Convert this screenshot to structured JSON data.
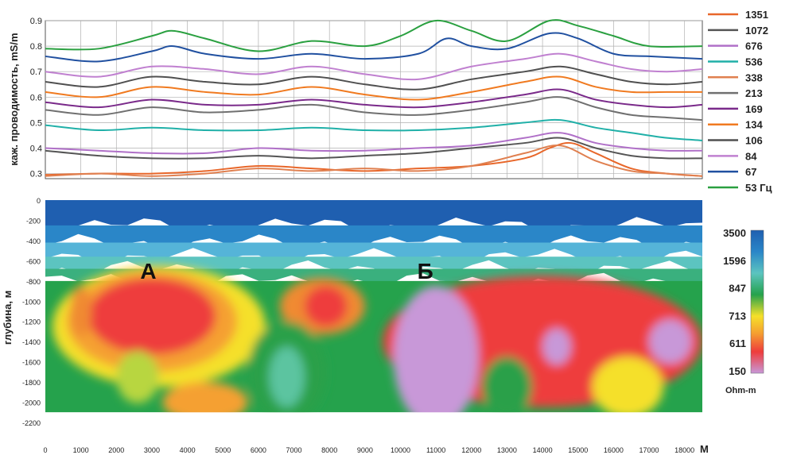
{
  "chart_data": [
    {
      "type": "line",
      "ylabel": "каж. проводимость, mS/m",
      "ylim": [
        0.28,
        0.9
      ],
      "yticks": [
        "0.9",
        "0.8",
        "0.7",
        "0.6",
        "0.5",
        "0.4",
        "0.3"
      ],
      "xlim": [
        0,
        18500
      ],
      "grid": true,
      "legend_position": "right",
      "frequency_unit": "Гц",
      "series": [
        {
          "name": "1351",
          "color": "#e8672a",
          "x": [
            0,
            1500,
            3000,
            4500,
            6000,
            7500,
            9000,
            10500,
            12000,
            13500,
            14200,
            14800,
            15500,
            16500,
            17500,
            18500
          ],
          "y": [
            0.295,
            0.3,
            0.3,
            0.31,
            0.33,
            0.32,
            0.31,
            0.32,
            0.33,
            0.36,
            0.4,
            0.42,
            0.38,
            0.32,
            0.3,
            0.29
          ]
        },
        {
          "name": "1072",
          "color": "#555555",
          "x": [
            0,
            1500,
            3000,
            4500,
            6000,
            7500,
            9000,
            10500,
            12000,
            13500,
            14500,
            15500,
            16500,
            17500,
            18500
          ],
          "y": [
            0.39,
            0.37,
            0.36,
            0.36,
            0.37,
            0.36,
            0.37,
            0.38,
            0.4,
            0.42,
            0.44,
            0.4,
            0.37,
            0.36,
            0.36
          ]
        },
        {
          "name": "676",
          "color": "#b070c8",
          "x": [
            0,
            1500,
            3000,
            4500,
            6000,
            7500,
            9000,
            10500,
            12000,
            13500,
            14500,
            15500,
            16500,
            17500,
            18500
          ],
          "y": [
            0.4,
            0.39,
            0.38,
            0.38,
            0.4,
            0.39,
            0.39,
            0.4,
            0.41,
            0.44,
            0.46,
            0.42,
            0.4,
            0.39,
            0.39
          ]
        },
        {
          "name": "536",
          "color": "#20b0a8",
          "x": [
            0,
            1500,
            3000,
            4500,
            6000,
            7500,
            9000,
            10500,
            12000,
            13500,
            14500,
            15500,
            16500,
            17500,
            18500
          ],
          "y": [
            0.49,
            0.47,
            0.48,
            0.47,
            0.47,
            0.48,
            0.47,
            0.47,
            0.48,
            0.5,
            0.51,
            0.48,
            0.46,
            0.44,
            0.43
          ]
        },
        {
          "name": "338",
          "color": "#e08050",
          "x": [
            0,
            1500,
            3000,
            4500,
            6000,
            7500,
            9000,
            10500,
            12000,
            13500,
            14500,
            15500,
            16500,
            17500,
            18500
          ],
          "y": [
            0.29,
            0.3,
            0.29,
            0.3,
            0.32,
            0.31,
            0.32,
            0.31,
            0.33,
            0.38,
            0.41,
            0.35,
            0.31,
            0.3,
            0.29
          ]
        },
        {
          "name": "213",
          "color": "#707070",
          "x": [
            0,
            1500,
            3000,
            4500,
            6000,
            7500,
            9000,
            10500,
            12000,
            13500,
            14500,
            15500,
            16500,
            17500,
            18500
          ],
          "y": [
            0.55,
            0.53,
            0.56,
            0.54,
            0.55,
            0.57,
            0.54,
            0.53,
            0.55,
            0.58,
            0.6,
            0.56,
            0.53,
            0.52,
            0.51
          ]
        },
        {
          "name": "169",
          "color": "#7a2a8a",
          "x": [
            0,
            1500,
            3000,
            4500,
            6000,
            7500,
            9000,
            10500,
            12000,
            13500,
            14500,
            15500,
            16500,
            17500,
            18500
          ],
          "y": [
            0.58,
            0.56,
            0.59,
            0.57,
            0.57,
            0.59,
            0.57,
            0.56,
            0.58,
            0.61,
            0.63,
            0.59,
            0.57,
            0.56,
            0.57
          ]
        },
        {
          "name": "134",
          "color": "#f07a20",
          "x": [
            0,
            1500,
            3000,
            4500,
            6000,
            7500,
            9000,
            10500,
            12000,
            13500,
            14500,
            15500,
            16500,
            17500,
            18500
          ],
          "y": [
            0.62,
            0.6,
            0.64,
            0.62,
            0.61,
            0.64,
            0.61,
            0.59,
            0.62,
            0.66,
            0.68,
            0.64,
            0.62,
            0.62,
            0.62
          ]
        },
        {
          "name": "106",
          "color": "#505050",
          "x": [
            0,
            1500,
            3000,
            4500,
            6000,
            7500,
            9000,
            10500,
            12000,
            13500,
            14500,
            15500,
            16500,
            17500,
            18500
          ],
          "y": [
            0.66,
            0.64,
            0.68,
            0.66,
            0.65,
            0.68,
            0.65,
            0.63,
            0.67,
            0.7,
            0.72,
            0.69,
            0.66,
            0.65,
            0.66
          ]
        },
        {
          "name": "84",
          "color": "#c080d0",
          "x": [
            0,
            1500,
            3000,
            4500,
            6000,
            7500,
            9000,
            10500,
            12000,
            13500,
            14500,
            15500,
            16500,
            17500,
            18500
          ],
          "y": [
            0.7,
            0.68,
            0.72,
            0.71,
            0.69,
            0.72,
            0.69,
            0.67,
            0.72,
            0.75,
            0.77,
            0.74,
            0.71,
            0.7,
            0.71
          ]
        },
        {
          "name": "67",
          "color": "#2050a0",
          "x": [
            0,
            1500,
            3000,
            3600,
            4500,
            6000,
            7500,
            9000,
            10500,
            11300,
            12000,
            13000,
            14200,
            15000,
            16000,
            17000,
            18500
          ],
          "y": [
            0.76,
            0.74,
            0.78,
            0.8,
            0.77,
            0.75,
            0.77,
            0.75,
            0.77,
            0.83,
            0.8,
            0.79,
            0.85,
            0.83,
            0.77,
            0.76,
            0.75
          ]
        },
        {
          "name": "53",
          "color": "#2aa040",
          "x": [
            0,
            1500,
            3000,
            3600,
            4500,
            6000,
            7500,
            9000,
            10000,
            11000,
            12000,
            13000,
            14200,
            15000,
            16000,
            17000,
            18500
          ],
          "y": [
            0.79,
            0.79,
            0.84,
            0.86,
            0.83,
            0.78,
            0.82,
            0.8,
            0.84,
            0.9,
            0.86,
            0.82,
            0.9,
            0.88,
            0.84,
            0.8,
            0.8
          ]
        }
      ]
    },
    {
      "type": "heatmap",
      "ylabel": "глубина, м",
      "xunit": "М",
      "xlim": [
        0,
        18500
      ],
      "ylim": [
        -2200,
        0
      ],
      "xticks": [
        "0",
        "1000",
        "2000",
        "3000",
        "4000",
        "5000",
        "6000",
        "7000",
        "8000",
        "9000",
        "10000",
        "11000",
        "12000",
        "13000",
        "14000",
        "15000",
        "16000",
        "17000",
        "18000"
      ],
      "yticks": [
        "0",
        "-200",
        "-400",
        "-600",
        "-800",
        "-1000",
        "-1200",
        "-1400",
        "-1600",
        "-1800",
        "-2000",
        "-2200"
      ],
      "annotations": [
        {
          "text": "А",
          "x": 2900,
          "y": -700
        },
        {
          "text": "Б",
          "x": 10700,
          "y": -700
        }
      ],
      "colorbar": {
        "unit": "Ohm-m",
        "labels": [
          "3500",
          "1596",
          "847",
          "713",
          "611",
          "150"
        ]
      },
      "bands": [
        {
          "depth": 0,
          "color": "#1f5fb0"
        },
        {
          "depth": -250,
          "color": "#2a86c8"
        },
        {
          "depth": -420,
          "color": "#55b4d8"
        },
        {
          "depth": -560,
          "color": "#5cc4c0"
        },
        {
          "depth": -680,
          "color": "#3ab07e"
        },
        {
          "depth": -800,
          "color": "#25a24c"
        }
      ],
      "anomalies": [
        {
          "x": 3200,
          "depth": -1250,
          "rx": 3000,
          "ry": 600,
          "color": "#f5e02a"
        },
        {
          "x": 3000,
          "depth": -1200,
          "rx": 2400,
          "ry": 500,
          "color": "#f5a030"
        },
        {
          "x": 3000,
          "depth": -1150,
          "rx": 1800,
          "ry": 380,
          "color": "#ee3c3c"
        },
        {
          "x": 2600,
          "depth": -1750,
          "rx": 600,
          "ry": 260,
          "color": "#b8d640"
        },
        {
          "x": 7800,
          "depth": -1050,
          "rx": 1200,
          "ry": 280,
          "color": "#f08a30"
        },
        {
          "x": 7900,
          "depth": -1050,
          "rx": 600,
          "ry": 200,
          "color": "#ee3c3c"
        },
        {
          "x": 6800,
          "depth": -1700,
          "rx": 1100,
          "ry": 500,
          "color": "#2aa04a"
        },
        {
          "x": 6800,
          "depth": -1750,
          "rx": 500,
          "ry": 300,
          "color": "#5cc4a0"
        },
        {
          "x": 14000,
          "depth": -1400,
          "rx": 4500,
          "ry": 650,
          "color": "#ee3c3c"
        },
        {
          "x": 11000,
          "depth": -1550,
          "rx": 1200,
          "ry": 700,
          "color": "#c898d8"
        },
        {
          "x": 14400,
          "depth": -1450,
          "rx": 400,
          "ry": 180,
          "color": "#c898d8"
        },
        {
          "x": 17600,
          "depth": -1400,
          "rx": 600,
          "ry": 220,
          "color": "#c898d8"
        },
        {
          "x": 13000,
          "depth": -1850,
          "rx": 700,
          "ry": 300,
          "color": "#2aa04a"
        },
        {
          "x": 16400,
          "depth": -1850,
          "rx": 1000,
          "ry": 300,
          "color": "#f5e02a"
        },
        {
          "x": 4500,
          "depth": -2000,
          "rx": 1200,
          "ry": 200,
          "color": "#f5a030"
        },
        {
          "x": 1000,
          "depth": -1100,
          "rx": 300,
          "ry": 250,
          "color": "#f08a30"
        }
      ]
    }
  ]
}
